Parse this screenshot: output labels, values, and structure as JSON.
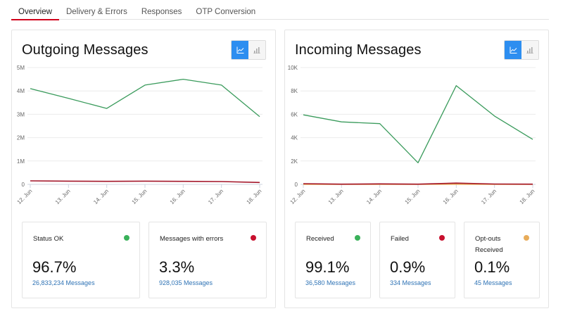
{
  "tabs": [
    {
      "label": "Overview",
      "active": true
    },
    {
      "label": "Delivery & Errors",
      "active": false
    },
    {
      "label": "Responses",
      "active": false
    },
    {
      "label": "OTP Conversion",
      "active": false
    }
  ],
  "colors": {
    "accent_tab": "#d0021b",
    "toggle_active": "#2d8ef0",
    "series_ok": "#3a9b5c",
    "series_error": "#a3162a",
    "link": "#2f73b5",
    "dot_green": "#3ab15a",
    "dot_red": "#c8102e",
    "dot_orange": "#e8ac5a"
  },
  "outgoing": {
    "title": "Outgoing Messages",
    "toggle": {
      "line_icon": "line-chart-icon",
      "bar_icon": "bar-chart-icon",
      "active": "line"
    },
    "cards": [
      {
        "label": "Status OK",
        "value": "96.7%",
        "sub": "26,833,234 Messages",
        "dot": "#3ab15a"
      },
      {
        "label": "Messages with errors",
        "value": "3.3%",
        "sub": "928,035 Messages",
        "dot": "#c8102e"
      }
    ]
  },
  "incoming": {
    "title": "Incoming Messages",
    "toggle": {
      "line_icon": "line-chart-icon",
      "bar_icon": "bar-chart-icon",
      "active": "line"
    },
    "cards": [
      {
        "label": "Received",
        "value": "99.1%",
        "sub": "36,580 Messages",
        "dot": "#3ab15a"
      },
      {
        "label": "Failed",
        "value": "0.9%",
        "sub": "334 Messages",
        "dot": "#c8102e"
      },
      {
        "label": "Opt-outs Received",
        "value": "0.1%",
        "sub": "45 Messages",
        "dot": "#e8ac5a"
      }
    ]
  },
  "chart_data": [
    {
      "type": "line",
      "title": "Outgoing Messages",
      "categories": [
        "12. Jun",
        "13. Jun",
        "14. Jun",
        "15. Jun",
        "16. Jun",
        "17. Jun",
        "18. Jun"
      ],
      "series": [
        {
          "name": "Status OK",
          "color": "#3a9b5c",
          "values": [
            4100000,
            3680000,
            3250000,
            4250000,
            4500000,
            4250000,
            2900000
          ]
        },
        {
          "name": "Messages with errors",
          "color": "#a3162a",
          "values": [
            150000,
            140000,
            130000,
            140000,
            130000,
            120000,
            80000
          ]
        }
      ],
      "yticks": [
        "0",
        "1M",
        "2M",
        "3M",
        "4M",
        "5M"
      ],
      "ylim": [
        0,
        5000000
      ],
      "xlabel": "",
      "ylabel": "",
      "grid": true
    },
    {
      "type": "line",
      "title": "Incoming Messages",
      "categories": [
        "12. Jun",
        "13. Jun",
        "14. Jun",
        "15. Jun",
        "16. Jun",
        "17. Jun",
        "18. Jun"
      ],
      "series": [
        {
          "name": "Received",
          "color": "#3a9b5c",
          "values": [
            5950,
            5350,
            5200,
            1850,
            8450,
            5850,
            3850
          ]
        },
        {
          "name": "Failed",
          "color": "#a3162a",
          "values": [
            60,
            20,
            40,
            20,
            110,
            30,
            20
          ]
        },
        {
          "name": "Opt-outs Received",
          "color": "#e8ac5a",
          "values": [
            5,
            5,
            8,
            5,
            10,
            6,
            6
          ]
        }
      ],
      "yticks": [
        "0",
        "2K",
        "4K",
        "6K",
        "8K",
        "10K"
      ],
      "ylim": [
        0,
        10000
      ],
      "xlabel": "",
      "ylabel": "",
      "grid": true
    }
  ]
}
